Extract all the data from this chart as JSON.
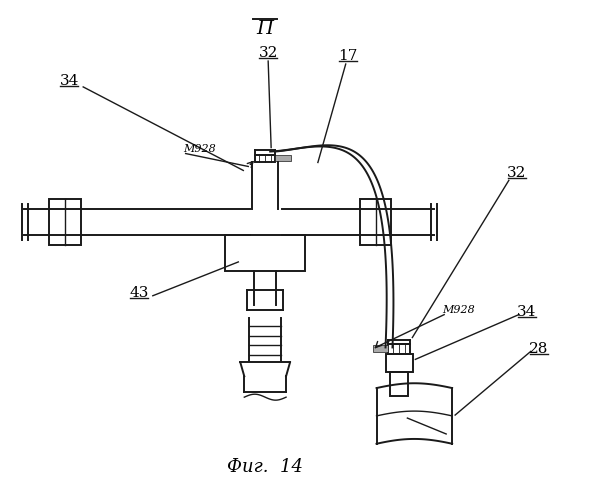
{
  "title": "Фиг.  14",
  "bg_color": "#ffffff",
  "lc": "#1a1a1a",
  "label_P": "П",
  "label_32_top": "32",
  "label_17": "17",
  "label_34_left": "34",
  "label_43": "43",
  "label_32_right": "32",
  "label_34_right": "34",
  "label_28": "28",
  "label_m928_left": "M928",
  "label_m928_right": "M928"
}
